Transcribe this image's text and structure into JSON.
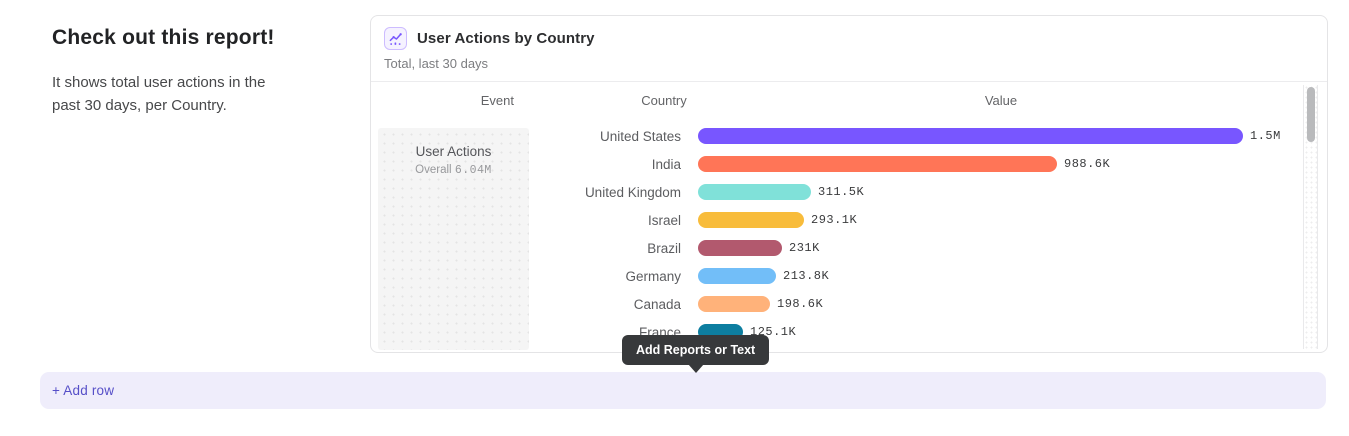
{
  "intro": {
    "heading": "Check out this report!",
    "body": "It shows total user actions in the past 30 days, per Country."
  },
  "report": {
    "title": "User Actions by Country",
    "subtitle": "Total, last 30 days",
    "icon": "line-chart-icon",
    "columns": {
      "event": "Event",
      "country": "Country",
      "value": "Value"
    },
    "event": {
      "name": "User Actions",
      "overall_label": "Overall",
      "overall_value": "6.04M"
    }
  },
  "chart_data": {
    "type": "bar",
    "orientation": "horizontal",
    "title": "User Actions by Country",
    "series_name": "User Actions",
    "categories": [
      "United States",
      "India",
      "United Kingdom",
      "Israel",
      "Brazil",
      "Germany",
      "Canada",
      "France"
    ],
    "values": [
      1500000,
      988600,
      311500,
      293100,
      231000,
      213800,
      198600,
      125100
    ],
    "value_labels": [
      "1.5M",
      "988.6K",
      "311.5K",
      "293.1K",
      "231K",
      "213.8K",
      "198.6K",
      "125.1K"
    ],
    "bar_colors": [
      "#7856ff",
      "#ff7557",
      "#80e1d9",
      "#f8bc3b",
      "#b2596e",
      "#72bef8",
      "#ffb27a",
      "#0d7ea0"
    ],
    "xlim": [
      0,
      1500000
    ],
    "total": "6.04M",
    "grid": false,
    "legend": false
  },
  "tooltip": {
    "label": "Add Reports or Text"
  },
  "add_row": {
    "label": "+ Add row"
  },
  "colors": {
    "accent": "#7856ff",
    "card_border": "#e4e4e6",
    "tooltip_bg": "#37393b",
    "add_row_bg": "#efedfb",
    "add_row_text": "#564fc8"
  }
}
